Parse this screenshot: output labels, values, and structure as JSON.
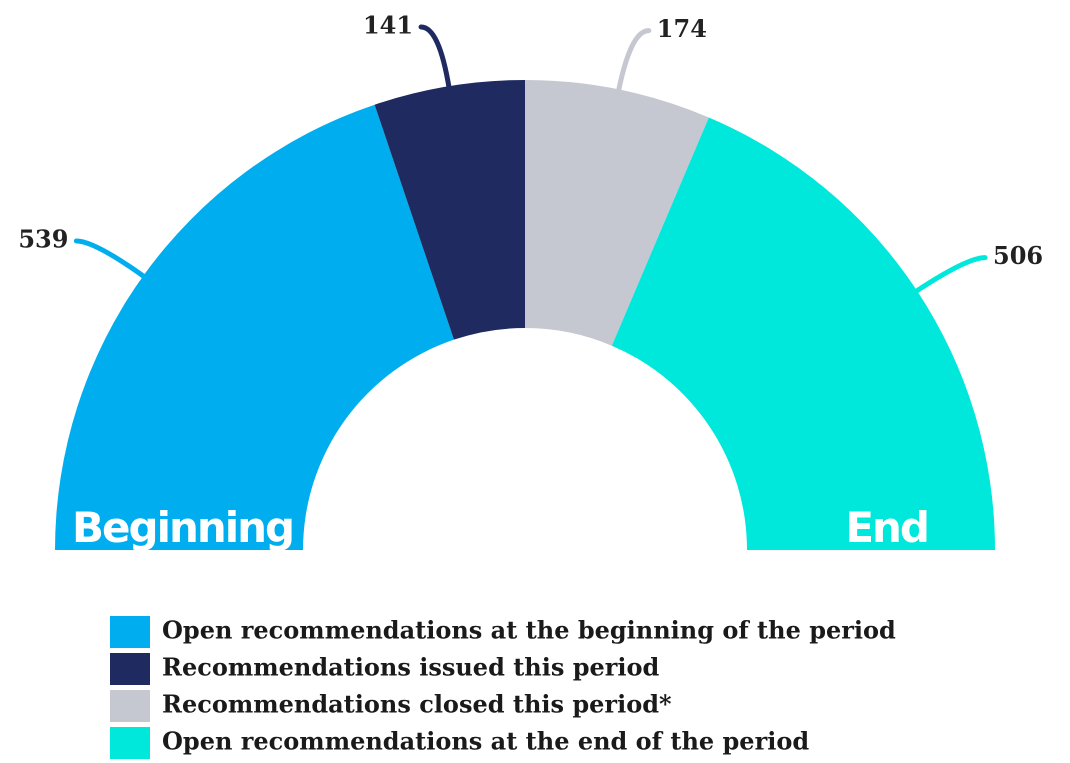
{
  "chart_data": {
    "type": "semi-donut",
    "categories": [
      "Open recommendations at the beginning of the period",
      "Recommendations issued this period",
      "Recommendations closed this period*",
      "Open recommendations at the end of the period"
    ],
    "values": [
      539,
      141,
      174,
      506
    ],
    "colors": [
      "#00aeef",
      "#1e2a60",
      "#c5c7d1",
      "#00e8dc"
    ],
    "annotations": [
      "Beginning",
      "End"
    ],
    "legend": "bottom-left"
  }
}
